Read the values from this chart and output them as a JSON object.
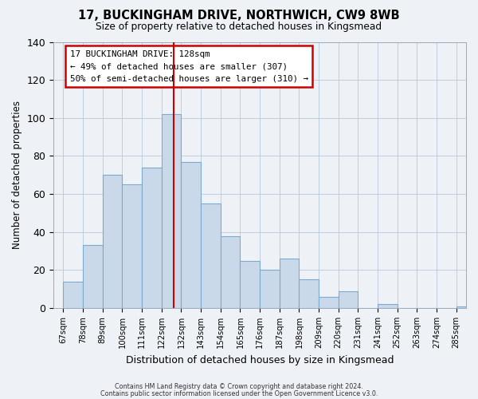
{
  "title": "17, BUCKINGHAM DRIVE, NORTHWICH, CW9 8WB",
  "subtitle": "Size of property relative to detached houses in Kingsmead",
  "xlabel": "Distribution of detached houses by size in Kingsmead",
  "ylabel": "Number of detached properties",
  "bar_labels": [
    "67sqm",
    "78sqm",
    "89sqm",
    "100sqm",
    "111sqm",
    "122sqm",
    "132sqm",
    "143sqm",
    "154sqm",
    "165sqm",
    "176sqm",
    "187sqm",
    "198sqm",
    "209sqm",
    "220sqm",
    "231sqm",
    "241sqm",
    "252sqm",
    "263sqm",
    "274sqm",
    "285sqm"
  ],
  "bar_heights": [
    14,
    33,
    70,
    65,
    74,
    102,
    77,
    55,
    38,
    25,
    20,
    26,
    15,
    6,
    9,
    0,
    2,
    0,
    0,
    0,
    1
  ],
  "bar_color": "#c9d9ea",
  "bar_edge_color": "#7aabcf",
  "ylim": [
    0,
    140
  ],
  "yticks": [
    0,
    20,
    40,
    60,
    80,
    100,
    120,
    140
  ],
  "vline_color": "#cc0000",
  "annotation_title": "17 BUCKINGHAM DRIVE: 128sqm",
  "annotation_line1": "← 49% of detached houses are smaller (307)",
  "annotation_line2": "50% of semi-detached houses are larger (310) →",
  "annotation_box_color": "#ffffff",
  "annotation_box_edge": "#cc0000",
  "footer1": "Contains HM Land Registry data © Crown copyright and database right 2024.",
  "footer2": "Contains public sector information licensed under the Open Government Licence v3.0.",
  "background_color": "#eef2f7",
  "plot_bg_color": "#eef2f7",
  "grid_color": "#b8c8dc"
}
